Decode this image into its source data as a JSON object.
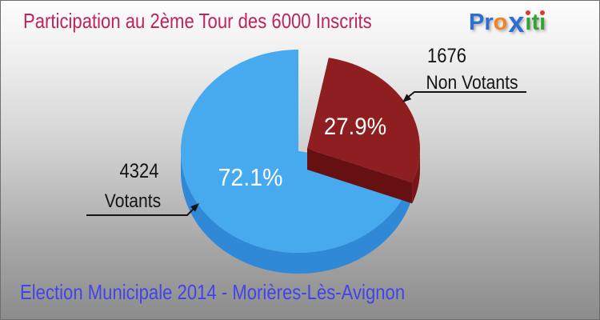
{
  "header": {
    "title": "Participation au 2ème Tour des 6000 Inscrits"
  },
  "logo": {
    "pro": "Pr",
    "o": "o",
    "x": "x",
    "iti": "iti",
    "colors": {
      "blue": "#2B6FD6",
      "orange": "#F5821F",
      "green": "#35A135",
      "dot_red": "#E0392C"
    }
  },
  "footer": {
    "caption": "Election Municipale 2014 - Morières-Lès-Avignon"
  },
  "colors": {
    "title": "#C0235F",
    "footer_text": "#4343EA",
    "callout_text": "#151515",
    "background_top": "#fdfdfd",
    "background_bottom": "#8c8c8c"
  },
  "chart_data": {
    "type": "pie",
    "style": "3d-exploded",
    "title": "Participation au 2ème Tour des 6000 Inscrits",
    "total_inscrits": 6000,
    "legend_position": "callouts",
    "slices": [
      {
        "label": "Votants",
        "value": 4324,
        "percent": "72.1%",
        "percent_value": 72.1,
        "color": "#47AAEF",
        "side_color": "#2F89D6",
        "edge_color": "#2B7FCC",
        "exploded": false
      },
      {
        "label": "Non Votants",
        "value": 1676,
        "percent": "27.9%",
        "percent_value": 27.9,
        "color": "#8E1E20",
        "side_color": "#7C1517",
        "edge_color": "#671012",
        "exploded": true
      }
    ]
  }
}
